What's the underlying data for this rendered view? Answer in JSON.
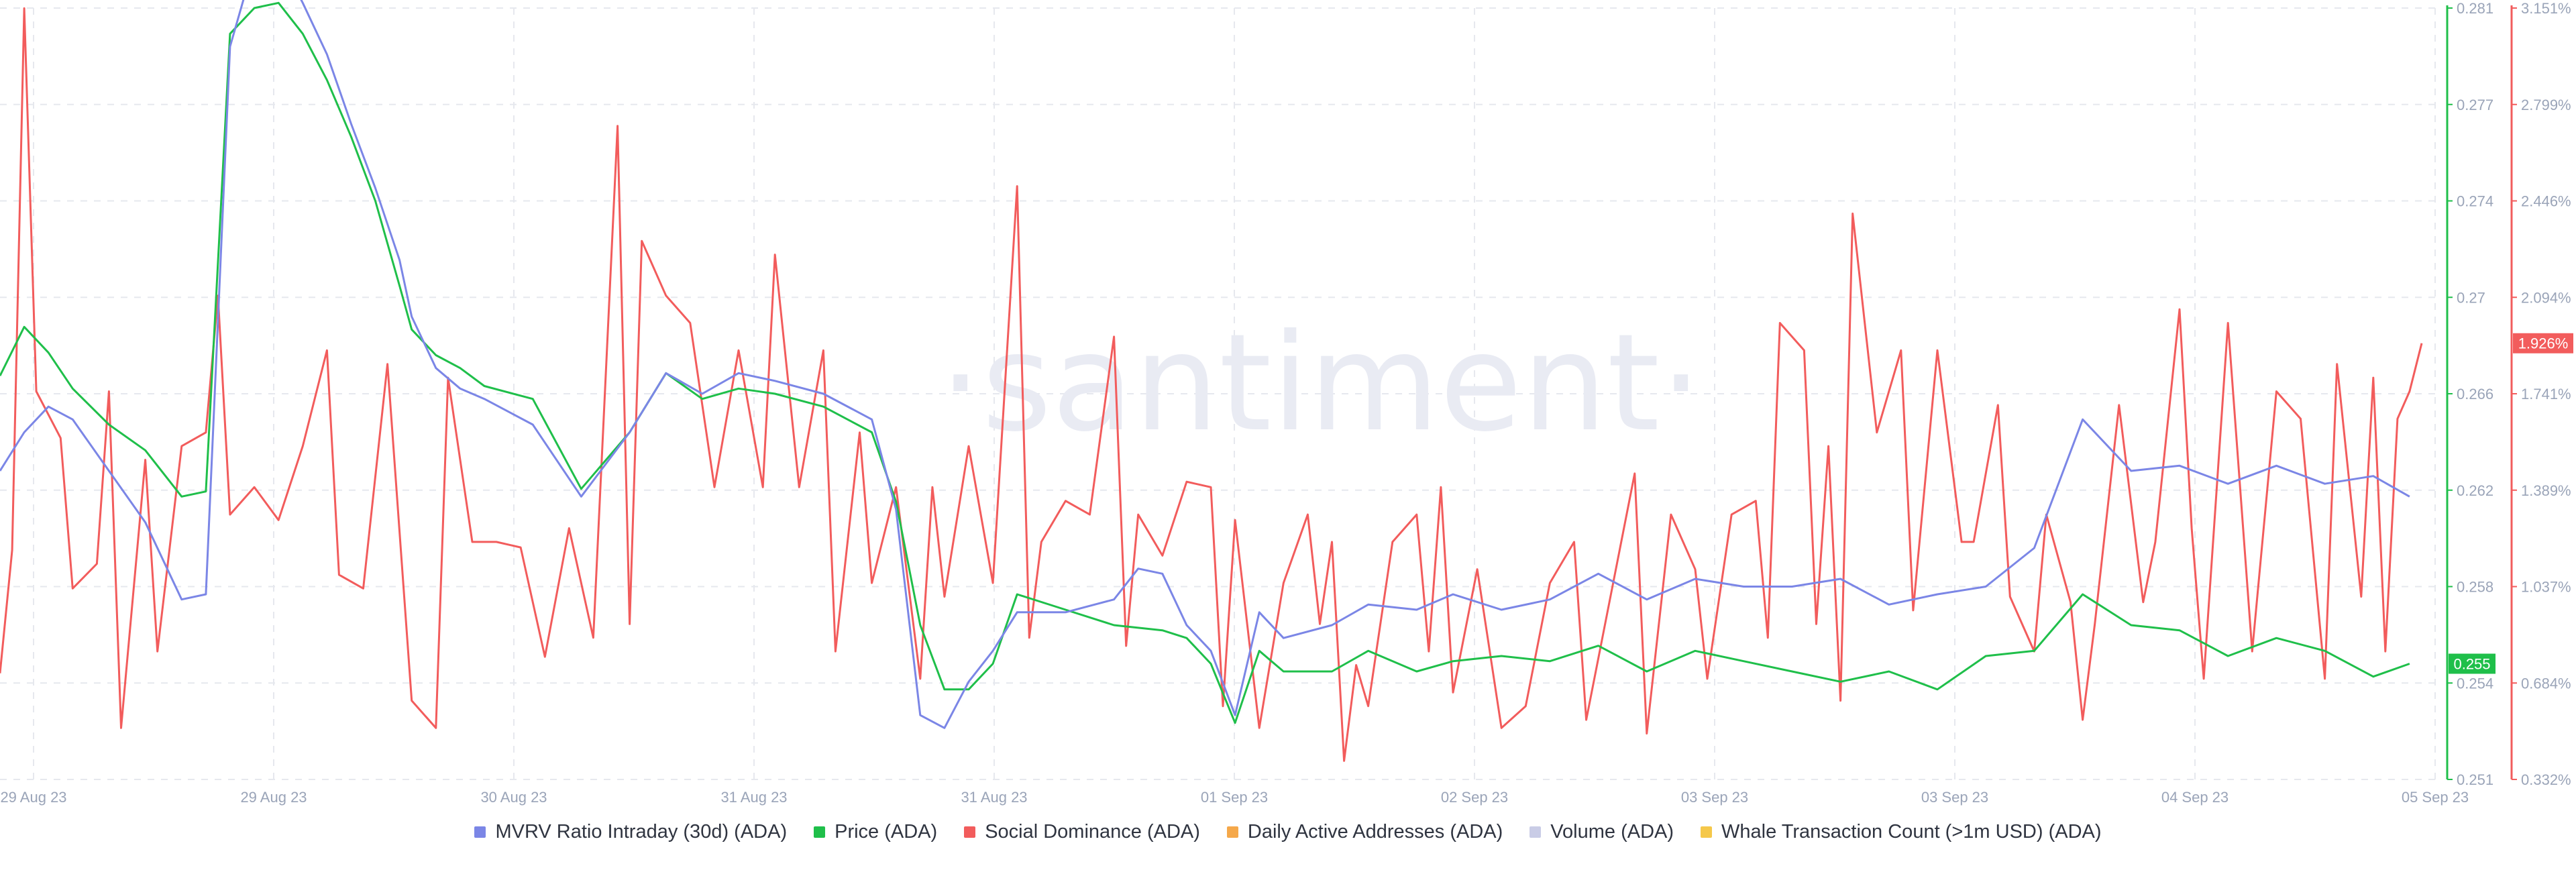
{
  "watermark": "·santiment·",
  "legend": [
    {
      "label": "MVRV Ratio Intraday (30d) (ADA)",
      "color": "#7b86e6"
    },
    {
      "label": "Price (ADA)",
      "color": "#1fbf4a"
    },
    {
      "label": "Social Dominance (ADA)",
      "color": "#f25c5c"
    },
    {
      "label": "Daily Active Addresses (ADA)",
      "color": "#f5a84a"
    },
    {
      "label": "Volume (ADA)",
      "color": "#c9cce6"
    },
    {
      "label": "Whale Transaction Count (>1m USD) (ADA)",
      "color": "#f5c84a"
    }
  ],
  "chart_data": {
    "type": "line",
    "x_ticks": [
      "29 Aug 23",
      "29 Aug 23",
      "30 Aug 23",
      "31 Aug 23",
      "31 Aug 23",
      "01 Sep 23",
      "02 Sep 23",
      "03 Sep 23",
      "03 Sep 23",
      "04 Sep 23",
      "05 Sep 23"
    ],
    "price_axis": {
      "ticks": [
        "0.281",
        "0.277",
        "0.274",
        "0.27",
        "0.266",
        "0.262",
        "0.258",
        "0.254",
        "0.251"
      ],
      "range": [
        0.251,
        0.281
      ],
      "current_label": "0.255",
      "current_value": 0.2555,
      "color": "#1fbf4a"
    },
    "social_axis": {
      "ticks": [
        "3.151%",
        "2.799%",
        "2.446%",
        "2.094%",
        "1.741%",
        "1.389%",
        "1.037%",
        "0.684%",
        "0.332%"
      ],
      "range": [
        0.332,
        3.151
      ],
      "current_label": "1.926%",
      "current_value": 1.926,
      "color": "#f25c5c"
    },
    "series": [
      {
        "name": "Price (ADA)",
        "axis": "price",
        "color": "#1fbf4a",
        "points": [
          [
            0,
            0.2667
          ],
          [
            0.01,
            0.2686
          ],
          [
            0.02,
            0.2676
          ],
          [
            0.03,
            0.2662
          ],
          [
            0.045,
            0.2648
          ],
          [
            0.06,
            0.2638
          ],
          [
            0.075,
            0.262
          ],
          [
            0.085,
            0.2622
          ],
          [
            0.095,
            0.28
          ],
          [
            0.105,
            0.281
          ],
          [
            0.115,
            0.2812
          ],
          [
            0.125,
            0.28
          ],
          [
            0.135,
            0.2782
          ],
          [
            0.145,
            0.276
          ],
          [
            0.155,
            0.2735
          ],
          [
            0.165,
            0.2702
          ],
          [
            0.17,
            0.2685
          ],
          [
            0.18,
            0.2675
          ],
          [
            0.19,
            0.267
          ],
          [
            0.2,
            0.2663
          ],
          [
            0.22,
            0.2658
          ],
          [
            0.24,
            0.2623
          ],
          [
            0.26,
            0.2645
          ],
          [
            0.275,
            0.2668
          ],
          [
            0.29,
            0.2658
          ],
          [
            0.305,
            0.2662
          ],
          [
            0.32,
            0.266
          ],
          [
            0.34,
            0.2655
          ],
          [
            0.36,
            0.2645
          ],
          [
            0.37,
            0.2618
          ],
          [
            0.38,
            0.257
          ],
          [
            0.39,
            0.2545
          ],
          [
            0.4,
            0.2545
          ],
          [
            0.41,
            0.2555
          ],
          [
            0.42,
            0.2582
          ],
          [
            0.44,
            0.2576
          ],
          [
            0.46,
            0.257
          ],
          [
            0.48,
            0.2568
          ],
          [
            0.49,
            0.2565
          ],
          [
            0.5,
            0.2555
          ],
          [
            0.51,
            0.2532
          ],
          [
            0.52,
            0.256
          ],
          [
            0.53,
            0.2552
          ],
          [
            0.55,
            0.2552
          ],
          [
            0.565,
            0.256
          ],
          [
            0.585,
            0.2552
          ],
          [
            0.6,
            0.2556
          ],
          [
            0.62,
            0.2558
          ],
          [
            0.64,
            0.2556
          ],
          [
            0.66,
            0.2562
          ],
          [
            0.68,
            0.2552
          ],
          [
            0.7,
            0.256
          ],
          [
            0.72,
            0.2556
          ],
          [
            0.74,
            0.2552
          ],
          [
            0.76,
            0.2548
          ],
          [
            0.78,
            0.2552
          ],
          [
            0.8,
            0.2545
          ],
          [
            0.82,
            0.2558
          ],
          [
            0.84,
            0.256
          ],
          [
            0.86,
            0.2582
          ],
          [
            0.88,
            0.257
          ],
          [
            0.9,
            0.2568
          ],
          [
            0.92,
            0.2558
          ],
          [
            0.94,
            0.2565
          ],
          [
            0.96,
            0.256
          ],
          [
            0.98,
            0.255
          ],
          [
            0.995,
            0.2555
          ]
        ]
      },
      {
        "name": "MVRV Ratio Intraday (30d) (ADA)",
        "axis": "price",
        "color": "#7b86e6",
        "points": [
          [
            0,
            0.263
          ],
          [
            0.01,
            0.2645
          ],
          [
            0.02,
            0.2655
          ],
          [
            0.03,
            0.265
          ],
          [
            0.045,
            0.263
          ],
          [
            0.06,
            0.261
          ],
          [
            0.075,
            0.258
          ],
          [
            0.085,
            0.2582
          ],
          [
            0.095,
            0.2795
          ],
          [
            0.105,
            0.2828
          ],
          [
            0.115,
            0.283
          ],
          [
            0.125,
            0.2812
          ],
          [
            0.135,
            0.2792
          ],
          [
            0.145,
            0.2765
          ],
          [
            0.155,
            0.274
          ],
          [
            0.165,
            0.2712
          ],
          [
            0.17,
            0.269
          ],
          [
            0.18,
            0.267
          ],
          [
            0.19,
            0.2662
          ],
          [
            0.2,
            0.2658
          ],
          [
            0.22,
            0.2648
          ],
          [
            0.24,
            0.262
          ],
          [
            0.26,
            0.2645
          ],
          [
            0.275,
            0.2668
          ],
          [
            0.29,
            0.266
          ],
          [
            0.305,
            0.2668
          ],
          [
            0.32,
            0.2665
          ],
          [
            0.34,
            0.266
          ],
          [
            0.36,
            0.265
          ],
          [
            0.37,
            0.2615
          ],
          [
            0.38,
            0.2535
          ],
          [
            0.39,
            0.253
          ],
          [
            0.4,
            0.2548
          ],
          [
            0.41,
            0.256
          ],
          [
            0.42,
            0.2575
          ],
          [
            0.44,
            0.2575
          ],
          [
            0.46,
            0.258
          ],
          [
            0.47,
            0.2592
          ],
          [
            0.48,
            0.259
          ],
          [
            0.49,
            0.257
          ],
          [
            0.5,
            0.256
          ],
          [
            0.51,
            0.2535
          ],
          [
            0.52,
            0.2575
          ],
          [
            0.53,
            0.2565
          ],
          [
            0.55,
            0.257
          ],
          [
            0.565,
            0.2578
          ],
          [
            0.585,
            0.2576
          ],
          [
            0.6,
            0.2582
          ],
          [
            0.62,
            0.2576
          ],
          [
            0.64,
            0.258
          ],
          [
            0.66,
            0.259
          ],
          [
            0.68,
            0.258
          ],
          [
            0.7,
            0.2588
          ],
          [
            0.72,
            0.2585
          ],
          [
            0.74,
            0.2585
          ],
          [
            0.76,
            0.2588
          ],
          [
            0.78,
            0.2578
          ],
          [
            0.8,
            0.2582
          ],
          [
            0.82,
            0.2585
          ],
          [
            0.84,
            0.26
          ],
          [
            0.86,
            0.265
          ],
          [
            0.88,
            0.263
          ],
          [
            0.9,
            0.2632
          ],
          [
            0.92,
            0.2625
          ],
          [
            0.94,
            0.2632
          ],
          [
            0.96,
            0.2625
          ],
          [
            0.98,
            0.2628
          ],
          [
            0.995,
            0.262
          ]
        ]
      },
      {
        "name": "Social Dominance (ADA)",
        "axis": "social",
        "color": "#f25c5c",
        "points": [
          [
            0,
            0.72
          ],
          [
            0.005,
            1.17
          ],
          [
            0.01,
            3.15
          ],
          [
            0.015,
            1.75
          ],
          [
            0.025,
            1.58
          ],
          [
            0.03,
            1.03
          ],
          [
            0.04,
            1.12
          ],
          [
            0.045,
            1.75
          ],
          [
            0.05,
            0.52
          ],
          [
            0.06,
            1.5
          ],
          [
            0.065,
            0.8
          ],
          [
            0.075,
            1.55
          ],
          [
            0.085,
            1.6
          ],
          [
            0.09,
            2.1
          ],
          [
            0.095,
            1.3
          ],
          [
            0.105,
            1.4
          ],
          [
            0.115,
            1.28
          ],
          [
            0.125,
            1.55
          ],
          [
            0.135,
            1.9
          ],
          [
            0.14,
            1.08
          ],
          [
            0.15,
            1.03
          ],
          [
            0.16,
            1.85
          ],
          [
            0.17,
            0.62
          ],
          [
            0.18,
            0.52
          ],
          [
            0.185,
            1.8
          ],
          [
            0.195,
            1.2
          ],
          [
            0.205,
            1.2
          ],
          [
            0.215,
            1.18
          ],
          [
            0.225,
            0.78
          ],
          [
            0.235,
            1.25
          ],
          [
            0.245,
            0.85
          ],
          [
            0.255,
            2.72
          ],
          [
            0.26,
            0.9
          ],
          [
            0.265,
            2.3
          ],
          [
            0.275,
            2.1
          ],
          [
            0.285,
            2.0
          ],
          [
            0.295,
            1.4
          ],
          [
            0.305,
            1.9
          ],
          [
            0.315,
            1.4
          ],
          [
            0.32,
            2.25
          ],
          [
            0.33,
            1.4
          ],
          [
            0.34,
            1.9
          ],
          [
            0.345,
            0.8
          ],
          [
            0.355,
            1.6
          ],
          [
            0.36,
            1.05
          ],
          [
            0.37,
            1.4
          ],
          [
            0.38,
            0.7
          ],
          [
            0.385,
            1.4
          ],
          [
            0.39,
            1.0
          ],
          [
            0.4,
            1.55
          ],
          [
            0.41,
            1.05
          ],
          [
            0.42,
            2.5
          ],
          [
            0.425,
            0.85
          ],
          [
            0.43,
            1.2
          ],
          [
            0.44,
            1.35
          ],
          [
            0.45,
            1.3
          ],
          [
            0.46,
            1.95
          ],
          [
            0.465,
            0.82
          ],
          [
            0.47,
            1.3
          ],
          [
            0.48,
            1.15
          ],
          [
            0.49,
            1.42
          ],
          [
            0.5,
            1.4
          ],
          [
            0.505,
            0.6
          ],
          [
            0.51,
            1.28
          ],
          [
            0.52,
            0.52
          ],
          [
            0.53,
            1.05
          ],
          [
            0.54,
            1.3
          ],
          [
            0.545,
            0.9
          ],
          [
            0.55,
            1.2
          ],
          [
            0.555,
            0.4
          ],
          [
            0.56,
            0.75
          ],
          [
            0.565,
            0.6
          ],
          [
            0.575,
            1.2
          ],
          [
            0.585,
            1.3
          ],
          [
            0.59,
            0.8
          ],
          [
            0.595,
            1.4
          ],
          [
            0.6,
            0.65
          ],
          [
            0.61,
            1.1
          ],
          [
            0.62,
            0.52
          ],
          [
            0.63,
            0.6
          ],
          [
            0.64,
            1.05
          ],
          [
            0.65,
            1.2
          ],
          [
            0.655,
            0.55
          ],
          [
            0.665,
            1.0
          ],
          [
            0.675,
            1.45
          ],
          [
            0.68,
            0.5
          ],
          [
            0.69,
            1.3
          ],
          [
            0.7,
            1.1
          ],
          [
            0.705,
            0.7
          ],
          [
            0.715,
            1.3
          ],
          [
            0.725,
            1.35
          ],
          [
            0.73,
            0.85
          ],
          [
            0.735,
            2.0
          ],
          [
            0.745,
            1.9
          ],
          [
            0.75,
            0.9
          ],
          [
            0.755,
            1.55
          ],
          [
            0.76,
            0.62
          ],
          [
            0.765,
            2.4
          ],
          [
            0.775,
            1.6
          ],
          [
            0.785,
            1.9
          ],
          [
            0.79,
            0.95
          ],
          [
            0.8,
            1.9
          ],
          [
            0.81,
            1.2
          ],
          [
            0.815,
            1.2
          ],
          [
            0.825,
            1.7
          ],
          [
            0.83,
            1.0
          ],
          [
            0.84,
            0.8
          ],
          [
            0.845,
            1.3
          ],
          [
            0.855,
            0.98
          ],
          [
            0.86,
            0.55
          ],
          [
            0.865,
            0.9
          ],
          [
            0.875,
            1.7
          ],
          [
            0.885,
            0.98
          ],
          [
            0.89,
            1.2
          ],
          [
            0.9,
            2.05
          ],
          [
            0.905,
            1.25
          ],
          [
            0.91,
            0.7
          ],
          [
            0.92,
            2.0
          ],
          [
            0.93,
            0.8
          ],
          [
            0.94,
            1.75
          ],
          [
            0.95,
            1.65
          ],
          [
            0.96,
            0.7
          ],
          [
            0.965,
            1.85
          ],
          [
            0.975,
            1.0
          ],
          [
            0.98,
            1.8
          ],
          [
            0.985,
            0.8
          ],
          [
            0.99,
            1.65
          ],
          [
            0.995,
            1.75
          ],
          [
            1.0,
            1.926
          ]
        ]
      }
    ]
  }
}
